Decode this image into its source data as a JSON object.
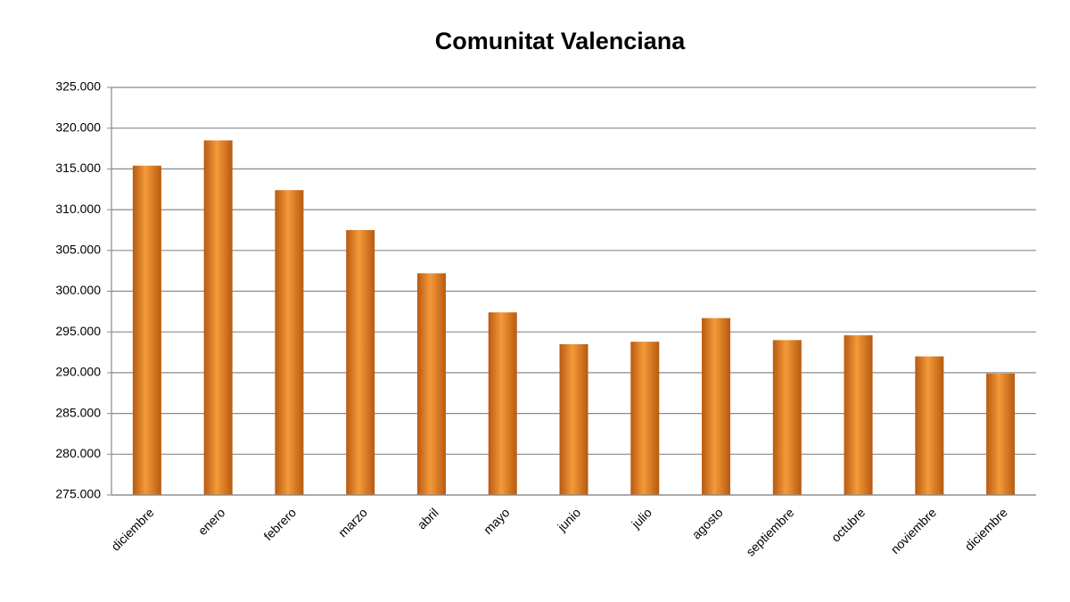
{
  "chart_data": {
    "type": "bar",
    "title": "Comunitat Valenciana",
    "categories": [
      "diciembre",
      "enero",
      "febrero",
      "marzo",
      "abril",
      "mayo",
      "junio",
      "julio",
      "agosto",
      "septiembre",
      "octubre",
      "noviembre",
      "diciembre"
    ],
    "values": [
      315400,
      318500,
      312400,
      307500,
      302200,
      297400,
      293500,
      293800,
      296700,
      294000,
      294600,
      292000,
      289900
    ],
    "color": "#f39a3a",
    "ylim": [
      275000,
      325000
    ],
    "yticks": [
      {
        "value": 275000,
        "label": "275.000"
      },
      {
        "value": 280000,
        "label": "280.000"
      },
      {
        "value": 285000,
        "label": "285.000"
      },
      {
        "value": 290000,
        "label": "290.000"
      },
      {
        "value": 295000,
        "label": "295.000"
      },
      {
        "value": 300000,
        "label": "300.000"
      },
      {
        "value": 305000,
        "label": "305.000"
      },
      {
        "value": 310000,
        "label": "310.000"
      },
      {
        "value": 315000,
        "label": "315.000"
      },
      {
        "value": 320000,
        "label": "320.000"
      },
      {
        "value": 325000,
        "label": "325.000"
      }
    ],
    "grid": true
  }
}
